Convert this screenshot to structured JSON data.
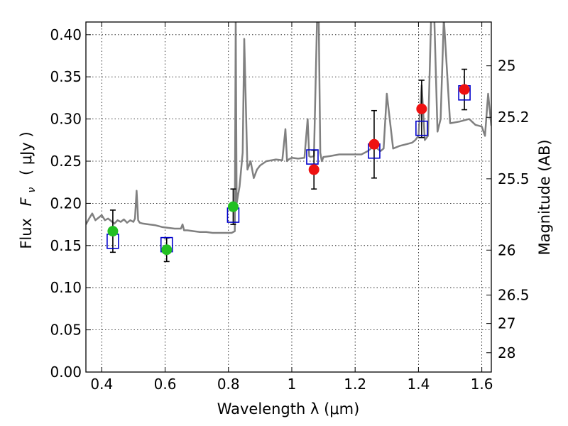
{
  "chart_data": {
    "type": "scatter",
    "xlabel": "Wavelength  λ (μm)",
    "ylabel_text": "Flux",
    "ylabel_symbol": "F",
    "ylabel_subscript": "ν",
    "ylabel_unit": "( μJy )",
    "y2label": "Magnitude (AB)",
    "xlim": [
      0.35,
      1.63
    ],
    "ylim": [
      0.0,
      0.415
    ],
    "grid": true,
    "x_ticks": [
      0.4,
      0.6,
      0.8,
      1.0,
      1.2,
      1.4,
      1.6
    ],
    "x_tick_labels": [
      "0.4",
      "0.6",
      "0.8",
      "1",
      "1.2",
      "1.4",
      "1.6"
    ],
    "y_ticks": [
      0.0,
      0.05,
      0.1,
      0.15,
      0.2,
      0.25,
      0.3,
      0.35,
      0.4
    ],
    "y_tick_labels": [
      "0.00",
      "0.05",
      "0.10",
      "0.15",
      "0.20",
      "0.25",
      "0.30",
      "0.35",
      "0.40"
    ],
    "mag_ticks": [
      {
        "label": "25",
        "mag": 25.0
      },
      {
        "label": "25.2",
        "mag": 25.2
      },
      {
        "label": "25.5",
        "mag": 25.5
      },
      {
        "label": "26",
        "mag": 26.0
      },
      {
        "label": "26.5",
        "mag": 26.5
      },
      {
        "label": "27",
        "mag": 27.0
      },
      {
        "label": "28",
        "mag": 28.0
      }
    ],
    "mag_zero_point": 23.9,
    "colors": {
      "spectrum": "#808080",
      "model_box": "#0000cc",
      "green_points": "#22c022",
      "red_points": "#ee1111",
      "error_bar": "#000000",
      "grid": "#000000"
    },
    "series": [
      {
        "name": "model-spectrum",
        "kind": "line",
        "x": [
          0.35,
          0.36,
          0.37,
          0.38,
          0.39,
          0.4,
          0.41,
          0.42,
          0.43,
          0.44,
          0.45,
          0.46,
          0.47,
          0.48,
          0.49,
          0.5,
          0.505,
          0.51,
          0.515,
          0.52,
          0.53,
          0.55,
          0.57,
          0.59,
          0.61,
          0.63,
          0.65,
          0.655,
          0.66,
          0.67,
          0.69,
          0.71,
          0.73,
          0.75,
          0.77,
          0.79,
          0.81,
          0.82,
          0.823,
          0.826,
          0.835,
          0.84,
          0.845,
          0.85,
          0.86,
          0.87,
          0.88,
          0.89,
          0.9,
          0.92,
          0.95,
          0.97,
          0.98,
          0.985,
          0.99,
          1.0,
          1.02,
          1.04,
          1.05,
          1.055,
          1.06,
          1.07,
          1.08,
          1.085,
          1.09,
          1.095,
          1.1,
          1.12,
          1.15,
          1.18,
          1.2,
          1.22,
          1.24,
          1.25,
          1.26,
          1.27,
          1.28,
          1.29,
          1.3,
          1.32,
          1.34,
          1.36,
          1.38,
          1.39,
          1.4,
          1.41,
          1.42,
          1.43,
          1.44,
          1.45,
          1.46,
          1.47,
          1.48,
          1.5,
          1.53,
          1.56,
          1.58,
          1.59,
          1.6,
          1.61,
          1.62,
          1.63
        ],
        "y": [
          0.175,
          0.182,
          0.188,
          0.18,
          0.183,
          0.186,
          0.18,
          0.182,
          0.179,
          0.176,
          0.18,
          0.178,
          0.181,
          0.177,
          0.18,
          0.178,
          0.182,
          0.215,
          0.18,
          0.177,
          0.176,
          0.175,
          0.174,
          0.172,
          0.171,
          0.17,
          0.17,
          0.175,
          0.168,
          0.168,
          0.167,
          0.166,
          0.166,
          0.165,
          0.165,
          0.165,
          0.165,
          0.167,
          0.42,
          0.2,
          0.22,
          0.24,
          0.26,
          0.395,
          0.24,
          0.25,
          0.23,
          0.24,
          0.245,
          0.25,
          0.252,
          0.251,
          0.288,
          0.25,
          0.252,
          0.254,
          0.253,
          0.254,
          0.3,
          0.256,
          0.255,
          0.256,
          0.42,
          0.42,
          0.26,
          0.25,
          0.255,
          0.256,
          0.258,
          0.258,
          0.258,
          0.258,
          0.262,
          0.265,
          0.275,
          0.265,
          0.262,
          0.265,
          0.33,
          0.265,
          0.268,
          0.27,
          0.272,
          0.275,
          0.28,
          0.34,
          0.275,
          0.28,
          0.42,
          0.42,
          0.285,
          0.3,
          0.42,
          0.295,
          0.297,
          0.3,
          0.293,
          0.292,
          0.291,
          0.28,
          0.33,
          0.292
        ]
      },
      {
        "name": "model-photometry",
        "kind": "box",
        "x": [
          0.435,
          0.605,
          0.815,
          1.065,
          1.26,
          1.41,
          1.545
        ],
        "y": [
          0.155,
          0.151,
          0.186,
          0.255,
          0.262,
          0.289,
          0.331
        ]
      },
      {
        "name": "observed-green",
        "kind": "point",
        "x": [
          0.435,
          0.605,
          0.815
        ],
        "y": [
          0.167,
          0.145,
          0.196
        ],
        "yerr": [
          0.025,
          0.014,
          0.021
        ]
      },
      {
        "name": "observed-red",
        "kind": "point",
        "x": [
          1.07,
          1.26,
          1.41,
          1.545
        ],
        "y": [
          0.24,
          0.27,
          0.312,
          0.335
        ],
        "yerr": [
          0.023,
          0.04,
          0.034,
          0.024
        ]
      }
    ]
  }
}
